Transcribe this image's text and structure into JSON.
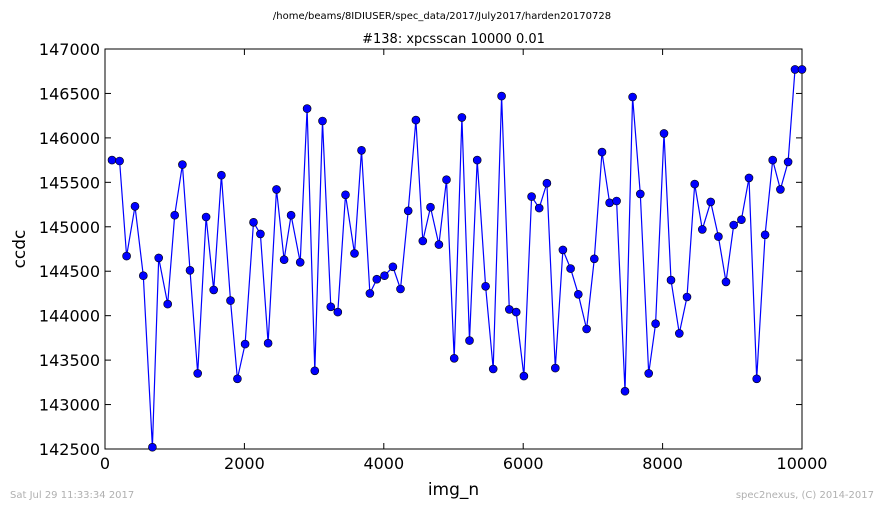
{
  "suptitle": "/home/beams/8IDIUSER/spec_data/2017/July2017/harden20170728",
  "footer_left": "Sat Jul 29 11:33:34 2017",
  "footer_right": "spec2nexus, (C) 2014-2017",
  "colors": {
    "line": "#0000ff",
    "marker": "#0000ff",
    "axes": "#000000",
    "footer": "#b0b0b0"
  },
  "chart_data": {
    "type": "line",
    "title": "#138: xpcsscan 10000 0.01",
    "xlabel": "img_n",
    "ylabel": "ccdc",
    "xlim": [
      0,
      10000
    ],
    "ylim": [
      142500,
      147000
    ],
    "xticks": [
      0,
      2000,
      4000,
      6000,
      8000,
      10000
    ],
    "xtick_labels": [
      "0",
      "2000",
      "4000",
      "6000",
      "8000",
      "10000"
    ],
    "yticks": [
      142500,
      143000,
      143500,
      144000,
      144500,
      145000,
      145500,
      146000,
      146500,
      147000
    ],
    "ytick_labels": [
      "142500",
      "143000",
      "143500",
      "144000",
      "144500",
      "145000",
      "145500",
      "146000",
      "146500",
      "147000"
    ],
    "grid": false,
    "series": [
      {
        "x": [
          100,
          210,
          310,
          430,
          550,
          680,
          770,
          900,
          1000,
          1110,
          1220,
          1330,
          1450,
          1560,
          1670,
          1800,
          1900,
          2010,
          2130,
          2230,
          2340,
          2460,
          2570,
          2670,
          2800,
          2900,
          3010,
          3120,
          3240,
          3340,
          3450,
          3580,
          3680,
          3800,
          3900,
          4010,
          4130,
          4240,
          4350,
          4460,
          4560,
          4670,
          4790,
          4900,
          5010,
          5120,
          5230,
          5340,
          5460,
          5570,
          5690,
          5800,
          5900,
          6010,
          6120,
          6230,
          6340,
          6460,
          6570,
          6680,
          6790,
          6910,
          7020,
          7130,
          7240,
          7340,
          7460,
          7570,
          7680,
          7800,
          7900,
          8020,
          8120,
          8240,
          8350,
          8460,
          8570,
          8690,
          8800,
          8910,
          9020,
          9130,
          9240,
          9350,
          9470,
          9580,
          9690,
          9800,
          9900,
          10000
        ],
        "y": [
          145750,
          145740,
          144670,
          145230,
          144450,
          142520,
          144650,
          144130,
          145130,
          145700,
          144510,
          143350,
          145110,
          144290,
          145580,
          144170,
          143290,
          143680,
          145050,
          144920,
          143690,
          145420,
          144630,
          145130,
          144600,
          146330,
          143380,
          146190,
          144100,
          144040,
          145360,
          144700,
          145860,
          144250,
          144410,
          144450,
          144550,
          144300,
          145180,
          146200,
          144840,
          145220,
          144800,
          145530,
          143520,
          146230,
          143720,
          145750,
          144330,
          143400,
          146470,
          144070,
          144040,
          143320,
          145340,
          145210,
          145490,
          143410,
          144740,
          144530,
          144240,
          143850,
          144640,
          145840,
          145270,
          145290,
          143150,
          146460,
          145370,
          143350,
          143910,
          146050,
          144400,
          143800,
          144210,
          145480,
          144970,
          145280,
          144890,
          144380,
          145020,
          145080,
          145550,
          143290,
          144910,
          145750,
          145420,
          145730,
          146770,
          146770
        ]
      }
    ]
  }
}
